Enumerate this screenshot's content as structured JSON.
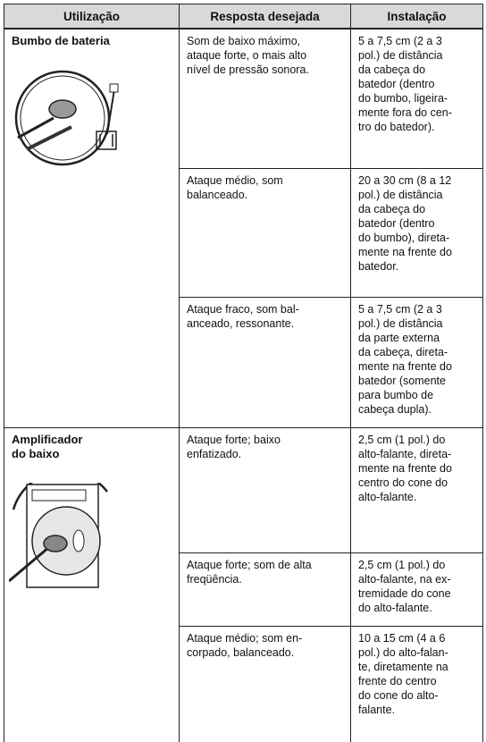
{
  "table": {
    "header": [
      "Utilização",
      "Resposta desejada",
      "Instalação"
    ],
    "groups": [
      {
        "label": [
          "Bumbo de bateria"
        ],
        "rows": [
          {
            "response": [
              "Som de baixo máximo,",
              "ataque forte, o mais alto",
              "nível de pressão sonora."
            ],
            "installation": [
              "5 a 7,5 cm (2 a 3",
              "pol.) de distância",
              "da cabeça do",
              "batedor (dentro",
              "do bumbo, ligeira-",
              "mente fora do cen-",
              "tro do batedor)."
            ]
          },
          {
            "response": [
              "Ataque médio, som",
              "balanceado."
            ],
            "installation": [
              "20 a 30 cm (8 a 12",
              "pol.) de distância",
              "da cabeça do",
              "batedor (dentro",
              "do bumbo), direta-",
              "mente na frente do",
              "batedor."
            ]
          },
          {
            "response": [
              "Ataque fraco, som bal-",
              "anceado, ressonante."
            ],
            "installation": [
              "5 a 7,5 cm (2 a 3",
              "pol.) de distância",
              "da parte externa",
              "da cabeça, direta-",
              "mente na frente do",
              "batedor (somente",
              "para bumbo de",
              "cabeça dupla)."
            ]
          }
        ]
      },
      {
        "label": [
          "Amplificador",
          "do baixo"
        ],
        "rows": [
          {
            "response": [
              "Ataque forte; baixo",
              "enfatizado."
            ],
            "installation": [
              "2,5 cm (1 pol.) do",
              "alto-falante, direta-",
              "mente na frente do",
              "centro do cone do",
              "alto-falante."
            ]
          },
          {
            "response": [
              "Ataque forte; som de alta",
              "freqüência."
            ],
            "installation": [
              "2,5 cm (1 pol.) do",
              "alto-falante, na ex-",
              "tremidade do cone",
              "do alto-falante."
            ]
          },
          {
            "response": [
              "Ataque médio; som en-",
              "corpado, balanceado."
            ],
            "installation": [
              "10 a 15 cm (4 a 6",
              "pol.) do alto-falan-",
              "te, diretamente na",
              "frente do centro",
              "do cone do alto-",
              "falante."
            ]
          }
        ]
      }
    ]
  }
}
